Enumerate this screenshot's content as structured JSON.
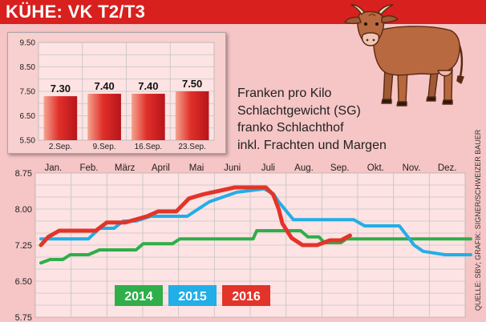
{
  "header": {
    "title": "KÜHE: VK T2/T3"
  },
  "note": {
    "lines": [
      "Franken pro Kilo",
      "Schlachtgewicht (SG)",
      "franko Schlachthof",
      "inkl. Frachten und Margen"
    ]
  },
  "credit": "QUELLE: SBV; GRAFIK: SIGNER/SCHWEIZER BAUER",
  "colors": {
    "header": "#d8201e",
    "bar": "#e2382f",
    "s2014": "#2fae4a",
    "s2015": "#22aee6",
    "s2016": "#e3342a"
  },
  "icons": {
    "cow": "cow-illustration"
  },
  "chart_data": [
    {
      "type": "bar",
      "categories": [
        "2.Sep.",
        "9.Sep.",
        "16.Sep.",
        "23.Sep."
      ],
      "values": [
        7.3,
        7.4,
        7.4,
        7.5
      ],
      "value_labels": [
        "7.30",
        "7.40",
        "7.40",
        "7.50"
      ],
      "yticks": [
        "9.50",
        "8.50",
        "7.50",
        "6.50",
        "5.50"
      ],
      "ylim": [
        5.5,
        9.5
      ],
      "grid": true
    },
    {
      "type": "line",
      "months": [
        "Jan.",
        "Feb.",
        "März",
        "April",
        "Mai",
        "Juni",
        "Juli",
        "Aug.",
        "Sep.",
        "Okt.",
        "Nov.",
        "Dez."
      ],
      "yticks": [
        "8.75",
        "8.00",
        "7.25",
        "6.50",
        "5.75"
      ],
      "ylim": [
        5.75,
        8.75
      ],
      "xlim": [
        1,
        12.75
      ],
      "grid": true,
      "series": [
        {
          "name": "2014",
          "color": "#2fae4a",
          "points": [
            [
              1,
              6.88
            ],
            [
              1.25,
              6.95
            ],
            [
              1.6,
              6.95
            ],
            [
              1.8,
              7.05
            ],
            [
              2.3,
              7.05
            ],
            [
              2.6,
              7.15
            ],
            [
              3.6,
              7.15
            ],
            [
              3.8,
              7.28
            ],
            [
              4.6,
              7.28
            ],
            [
              4.8,
              7.38
            ],
            [
              6.8,
              7.38
            ],
            [
              6.9,
              7.55
            ],
            [
              8.1,
              7.55
            ],
            [
              8.3,
              7.42
            ],
            [
              8.6,
              7.42
            ],
            [
              8.75,
              7.3
            ],
            [
              9.2,
              7.3
            ],
            [
              9.35,
              7.38
            ],
            [
              12.75,
              7.38
            ]
          ]
        },
        {
          "name": "2015",
          "color": "#22aee6",
          "points": [
            [
              1,
              7.38
            ],
            [
              2.3,
              7.38
            ],
            [
              2.6,
              7.6
            ],
            [
              3,
              7.6
            ],
            [
              3.25,
              7.75
            ],
            [
              3.6,
              7.75
            ],
            [
              4,
              7.85
            ],
            [
              5,
              7.85
            ],
            [
              5.6,
              8.15
            ],
            [
              6.35,
              8.35
            ],
            [
              7.1,
              8.42
            ],
            [
              7.35,
              8.32
            ],
            [
              7.5,
              8.15
            ],
            [
              7.75,
              7.92
            ],
            [
              7.9,
              7.78
            ],
            [
              9.55,
              7.78
            ],
            [
              9.85,
              7.65
            ],
            [
              10.8,
              7.65
            ],
            [
              11,
              7.45
            ],
            [
              11.2,
              7.25
            ],
            [
              11.45,
              7.12
            ],
            [
              12.05,
              7.05
            ],
            [
              12.75,
              7.05
            ]
          ]
        },
        {
          "name": "2016",
          "color": "#e3342a",
          "points": [
            [
              1,
              7.25
            ],
            [
              1.2,
              7.42
            ],
            [
              1.5,
              7.55
            ],
            [
              2.5,
              7.55
            ],
            [
              2.8,
              7.72
            ],
            [
              3.3,
              7.72
            ],
            [
              3.9,
              7.85
            ],
            [
              4.2,
              7.95
            ],
            [
              4.7,
              7.95
            ],
            [
              5.05,
              8.22
            ],
            [
              5.4,
              8.3
            ],
            [
              6,
              8.4
            ],
            [
              6.3,
              8.45
            ],
            [
              6.8,
              8.45
            ],
            [
              7.15,
              8.45
            ],
            [
              7.35,
              8.3
            ],
            [
              7.5,
              8.0
            ],
            [
              7.6,
              7.7
            ],
            [
              7.85,
              7.4
            ],
            [
              8.15,
              7.25
            ],
            [
              8.55,
              7.25
            ],
            [
              8.9,
              7.35
            ],
            [
              9.2,
              7.35
            ],
            [
              9.45,
              7.45
            ]
          ]
        }
      ]
    }
  ]
}
